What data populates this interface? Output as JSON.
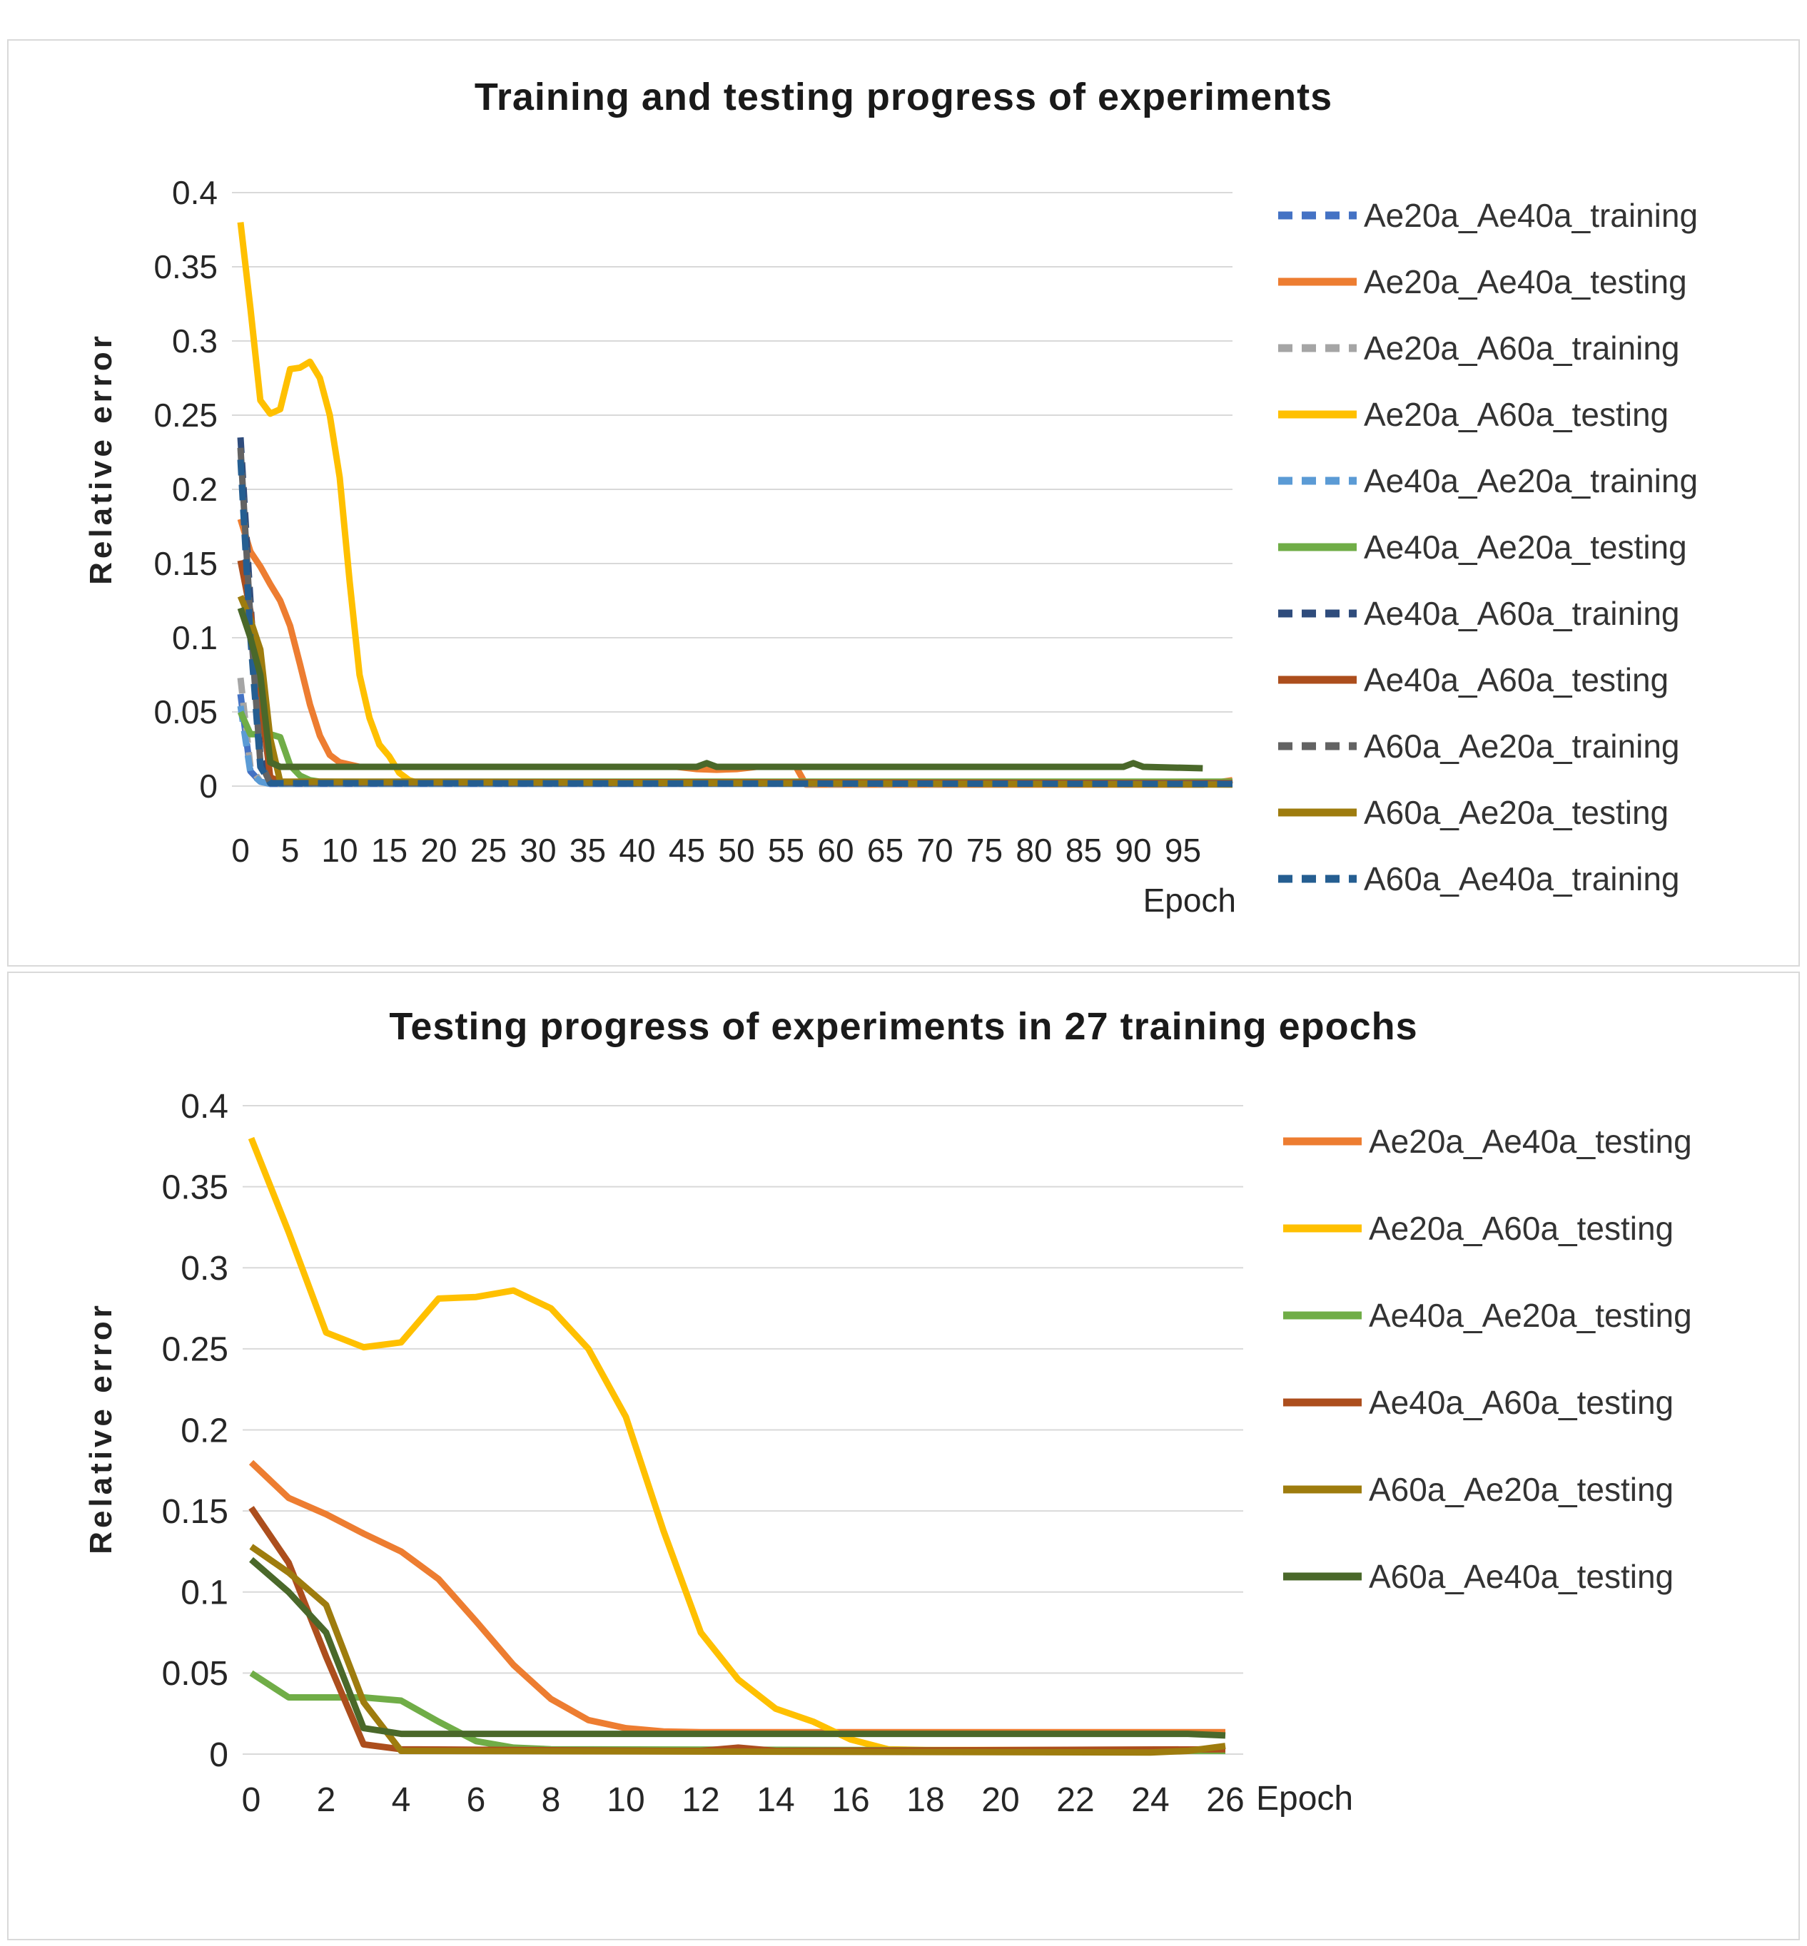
{
  "chart_data": [
    {
      "id": "training-testing-chart",
      "type": "line",
      "title": "Training and testing progress of experiments",
      "xlabel": "Epoch",
      "ylabel": "Relative error",
      "xlim": [
        0,
        100
      ],
      "ylim": [
        0,
        0.4
      ],
      "xticks": [
        0,
        5,
        10,
        15,
        20,
        25,
        30,
        35,
        40,
        45,
        50,
        55,
        60,
        65,
        70,
        75,
        80,
        85,
        90,
        95
      ],
      "yticks": [
        0.4,
        0.35,
        0.3,
        0.25,
        0.2,
        0.15,
        0.1,
        0.05,
        0
      ],
      "ytick_labels": [
        "0.4",
        "0.35",
        "0.3",
        "0.25",
        "0.2",
        "0.15",
        "0.1",
        "0.05",
        "0"
      ],
      "grid": "horizontal",
      "gridline_color": "#D9D9D9",
      "legend_position": "right",
      "series": [
        {
          "name": "Ae20a_Ae40a_training",
          "color": "#4472C4",
          "dash": true,
          "in_legend": true,
          "points": [
            [
              0,
              0.062
            ],
            [
              1,
              0.01
            ],
            [
              2,
              0.003
            ],
            [
              3,
              0.0015
            ],
            [
              100,
              0.0015
            ]
          ]
        },
        {
          "name": "Ae20a_Ae40a_testing",
          "color": "#ED7D31",
          "dash": false,
          "in_legend": true,
          "points": [
            [
              0,
              0.18
            ],
            [
              1,
              0.158
            ],
            [
              2,
              0.148
            ],
            [
              3,
              0.136
            ],
            [
              4,
              0.125
            ],
            [
              5,
              0.108
            ],
            [
              6,
              0.082
            ],
            [
              7,
              0.055
            ],
            [
              8,
              0.034
            ],
            [
              9,
              0.021
            ],
            [
              10,
              0.016
            ],
            [
              12,
              0.013
            ],
            [
              44,
              0.013
            ],
            [
              46,
              0.0115
            ],
            [
              48,
              0.011
            ],
            [
              50,
              0.0115
            ],
            [
              52,
              0.013
            ],
            [
              56,
              0.013
            ],
            [
              57,
              0.001
            ],
            [
              97,
              0.001
            ],
            [
              100,
              0.004
            ]
          ]
        },
        {
          "name": "Ae20a_A60a_training",
          "color": "#A5A5A5",
          "dash": true,
          "in_legend": true,
          "points": [
            [
              0,
              0.073
            ],
            [
              1,
              0.013
            ],
            [
              2,
              0.003
            ],
            [
              3,
              0.0015
            ],
            [
              100,
              0.0015
            ]
          ]
        },
        {
          "name": "Ae20a_A60a_testing",
          "color": "#FFC000",
          "dash": false,
          "in_legend": true,
          "points": [
            [
              0,
              0.38
            ],
            [
              1,
              0.322
            ],
            [
              2,
              0.26
            ],
            [
              3,
              0.251
            ],
            [
              4,
              0.254
            ],
            [
              5,
              0.281
            ],
            [
              6,
              0.282
            ],
            [
              7,
              0.286
            ],
            [
              8,
              0.275
            ],
            [
              9,
              0.25
            ],
            [
              10,
              0.208
            ],
            [
              11,
              0.138
            ],
            [
              12,
              0.075
            ],
            [
              13,
              0.046
            ],
            [
              14,
              0.028
            ],
            [
              15,
              0.02
            ],
            [
              16,
              0.009
            ],
            [
              17,
              0.004
            ],
            [
              18,
              0.002
            ],
            [
              100,
              0.002
            ]
          ]
        },
        {
          "name": "Ae40a_Ae20a_training",
          "color": "#5B9BD5",
          "dash": true,
          "in_legend": true,
          "points": [
            [
              0,
              0.054
            ],
            [
              1,
              0.009
            ],
            [
              2,
              0.003
            ],
            [
              3,
              0.0015
            ],
            [
              100,
              0.0015
            ]
          ]
        },
        {
          "name": "Ae40a_Ae20a_testing",
          "color": "#70AD47",
          "dash": false,
          "in_legend": true,
          "points": [
            [
              0,
              0.05
            ],
            [
              1,
              0.035
            ],
            [
              2,
              0.035
            ],
            [
              3,
              0.035
            ],
            [
              4,
              0.033
            ],
            [
              5,
              0.014
            ],
            [
              6,
              0.007
            ],
            [
              7,
              0.004
            ],
            [
              8,
              0.003
            ],
            [
              100,
              0.003
            ]
          ]
        },
        {
          "name": "Ae40a_A60a_training",
          "color": "#2F4C7C",
          "dash": true,
          "in_legend": true,
          "points": [
            [
              0,
              0.235
            ],
            [
              1,
              0.125
            ],
            [
              2,
              0.02
            ],
            [
              3,
              0.002
            ],
            [
              100,
              0.0015
            ]
          ]
        },
        {
          "name": "Ae40a_A60a_testing",
          "color": "#AC4E1D",
          "dash": false,
          "in_legend": true,
          "points": [
            [
              0,
              0.152
            ],
            [
              1,
              0.118
            ],
            [
              2,
              0.06
            ],
            [
              3,
              0.006
            ],
            [
              4,
              0.003
            ],
            [
              100,
              0.002
            ]
          ]
        },
        {
          "name": "A60a_Ae20a_training",
          "color": "#636363",
          "dash": true,
          "in_legend": true,
          "points": [
            [
              0,
              0.228
            ],
            [
              1,
              0.112
            ],
            [
              2,
              0.016
            ],
            [
              3,
              0.002
            ],
            [
              100,
              0.0015
            ]
          ]
        },
        {
          "name": "A60a_Ae20a_testing",
          "color": "#9E7C0E",
          "dash": false,
          "in_legend": true,
          "points": [
            [
              0,
              0.128
            ],
            [
              1,
              0.112
            ],
            [
              2,
              0.092
            ],
            [
              3,
              0.032
            ],
            [
              4,
              0.003
            ],
            [
              100,
              0.001
            ]
          ]
        },
        {
          "name": "A60a_Ae40a_training",
          "color": "#255E91",
          "dash": true,
          "in_legend": true,
          "points": [
            [
              0,
              0.22
            ],
            [
              1,
              0.1
            ],
            [
              2,
              0.013
            ],
            [
              3,
              0.002
            ],
            [
              100,
              0.0015
            ]
          ]
        },
        {
          "name": "A60a_Ae40a_testing",
          "color": "#4A682A",
          "dash": false,
          "in_legend": false,
          "points": [
            [
              0,
              0.12
            ],
            [
              1,
              0.1
            ],
            [
              2,
              0.075
            ],
            [
              3,
              0.016
            ],
            [
              4,
              0.013
            ],
            [
              46,
              0.013
            ],
            [
              47,
              0.0155
            ],
            [
              48,
              0.013
            ],
            [
              89,
              0.013
            ],
            [
              90,
              0.0155
            ],
            [
              91,
              0.013
            ],
            [
              97,
              0.012
            ]
          ]
        }
      ]
    },
    {
      "id": "testing-27-epochs-chart",
      "type": "line",
      "title": "Testing progress of experiments in 27 training epochs",
      "xlabel": "Epoch",
      "ylabel": "Relative error",
      "xlim": [
        0,
        26
      ],
      "ylim": [
        0,
        0.4
      ],
      "xticks": [
        0,
        2,
        4,
        6,
        8,
        10,
        12,
        14,
        16,
        18,
        20,
        22,
        24,
        26
      ],
      "yticks": [
        0.4,
        0.35,
        0.3,
        0.25,
        0.2,
        0.15,
        0.1,
        0.05,
        0
      ],
      "ytick_labels": [
        "0.4",
        "0.35",
        "0.3",
        "0.25",
        "0.2",
        "0.15",
        "0.1",
        "0.05",
        "0"
      ],
      "grid": "horizontal",
      "gridline_color": "#D9D9D9",
      "legend_position": "right",
      "series": [
        {
          "name": "Ae20a_Ae40a_testing",
          "color": "#ED7D31",
          "dash": false,
          "in_legend": true,
          "points": [
            [
              0,
              0.18
            ],
            [
              1,
              0.158
            ],
            [
              2,
              0.148
            ],
            [
              3,
              0.136
            ],
            [
              4,
              0.125
            ],
            [
              5,
              0.108
            ],
            [
              6,
              0.082
            ],
            [
              7,
              0.055
            ],
            [
              8,
              0.034
            ],
            [
              9,
              0.021
            ],
            [
              10,
              0.016
            ],
            [
              11,
              0.014
            ],
            [
              12,
              0.0135
            ],
            [
              26,
              0.0135
            ]
          ]
        },
        {
          "name": "Ae20a_A60a_testing",
          "color": "#FFC000",
          "dash": false,
          "in_legend": true,
          "points": [
            [
              0,
              0.38
            ],
            [
              1,
              0.322
            ],
            [
              2,
              0.26
            ],
            [
              3,
              0.251
            ],
            [
              4,
              0.254
            ],
            [
              5,
              0.281
            ],
            [
              6,
              0.282
            ],
            [
              7,
              0.286
            ],
            [
              8,
              0.275
            ],
            [
              9,
              0.25
            ],
            [
              10,
              0.208
            ],
            [
              11,
              0.138
            ],
            [
              12,
              0.075
            ],
            [
              13,
              0.046
            ],
            [
              14,
              0.028
            ],
            [
              15,
              0.02
            ],
            [
              16,
              0.009
            ],
            [
              17,
              0.003
            ],
            [
              18,
              0.0025
            ],
            [
              26,
              0.0025
            ]
          ]
        },
        {
          "name": "Ae40a_Ae20a_testing",
          "color": "#70AD47",
          "dash": false,
          "in_legend": true,
          "points": [
            [
              0,
              0.05
            ],
            [
              1,
              0.035
            ],
            [
              2,
              0.035
            ],
            [
              3,
              0.035
            ],
            [
              4,
              0.033
            ],
            [
              5,
              0.02
            ],
            [
              6,
              0.008
            ],
            [
              7,
              0.004
            ],
            [
              8,
              0.003
            ],
            [
              26,
              0.002
            ]
          ]
        },
        {
          "name": "Ae40a_A60a_testing",
          "color": "#AC4E1D",
          "dash": false,
          "in_legend": true,
          "points": [
            [
              0,
              0.152
            ],
            [
              1,
              0.118
            ],
            [
              2,
              0.06
            ],
            [
              3,
              0.006
            ],
            [
              4,
              0.003
            ],
            [
              11,
              0.002
            ],
            [
              12,
              0.002
            ],
            [
              13,
              0.004
            ],
            [
              14,
              0.002
            ],
            [
              26,
              0.003
            ]
          ]
        },
        {
          "name": "A60a_Ae20a_testing",
          "color": "#9E7C0E",
          "dash": false,
          "in_legend": true,
          "points": [
            [
              0,
              0.128
            ],
            [
              1,
              0.112
            ],
            [
              2,
              0.092
            ],
            [
              3,
              0.032
            ],
            [
              4,
              0.002
            ],
            [
              24,
              0.001
            ],
            [
              25,
              0.002
            ],
            [
              26,
              0.005
            ]
          ]
        },
        {
          "name": "A60a_Ae40a_testing",
          "color": "#4A682A",
          "dash": false,
          "in_legend": true,
          "points": [
            [
              0,
              0.12
            ],
            [
              1,
              0.1
            ],
            [
              2,
              0.075
            ],
            [
              3,
              0.016
            ],
            [
              4,
              0.0125
            ],
            [
              24,
              0.0125
            ],
            [
              25,
              0.0125
            ],
            [
              26,
              0.0115
            ]
          ]
        }
      ]
    }
  ]
}
